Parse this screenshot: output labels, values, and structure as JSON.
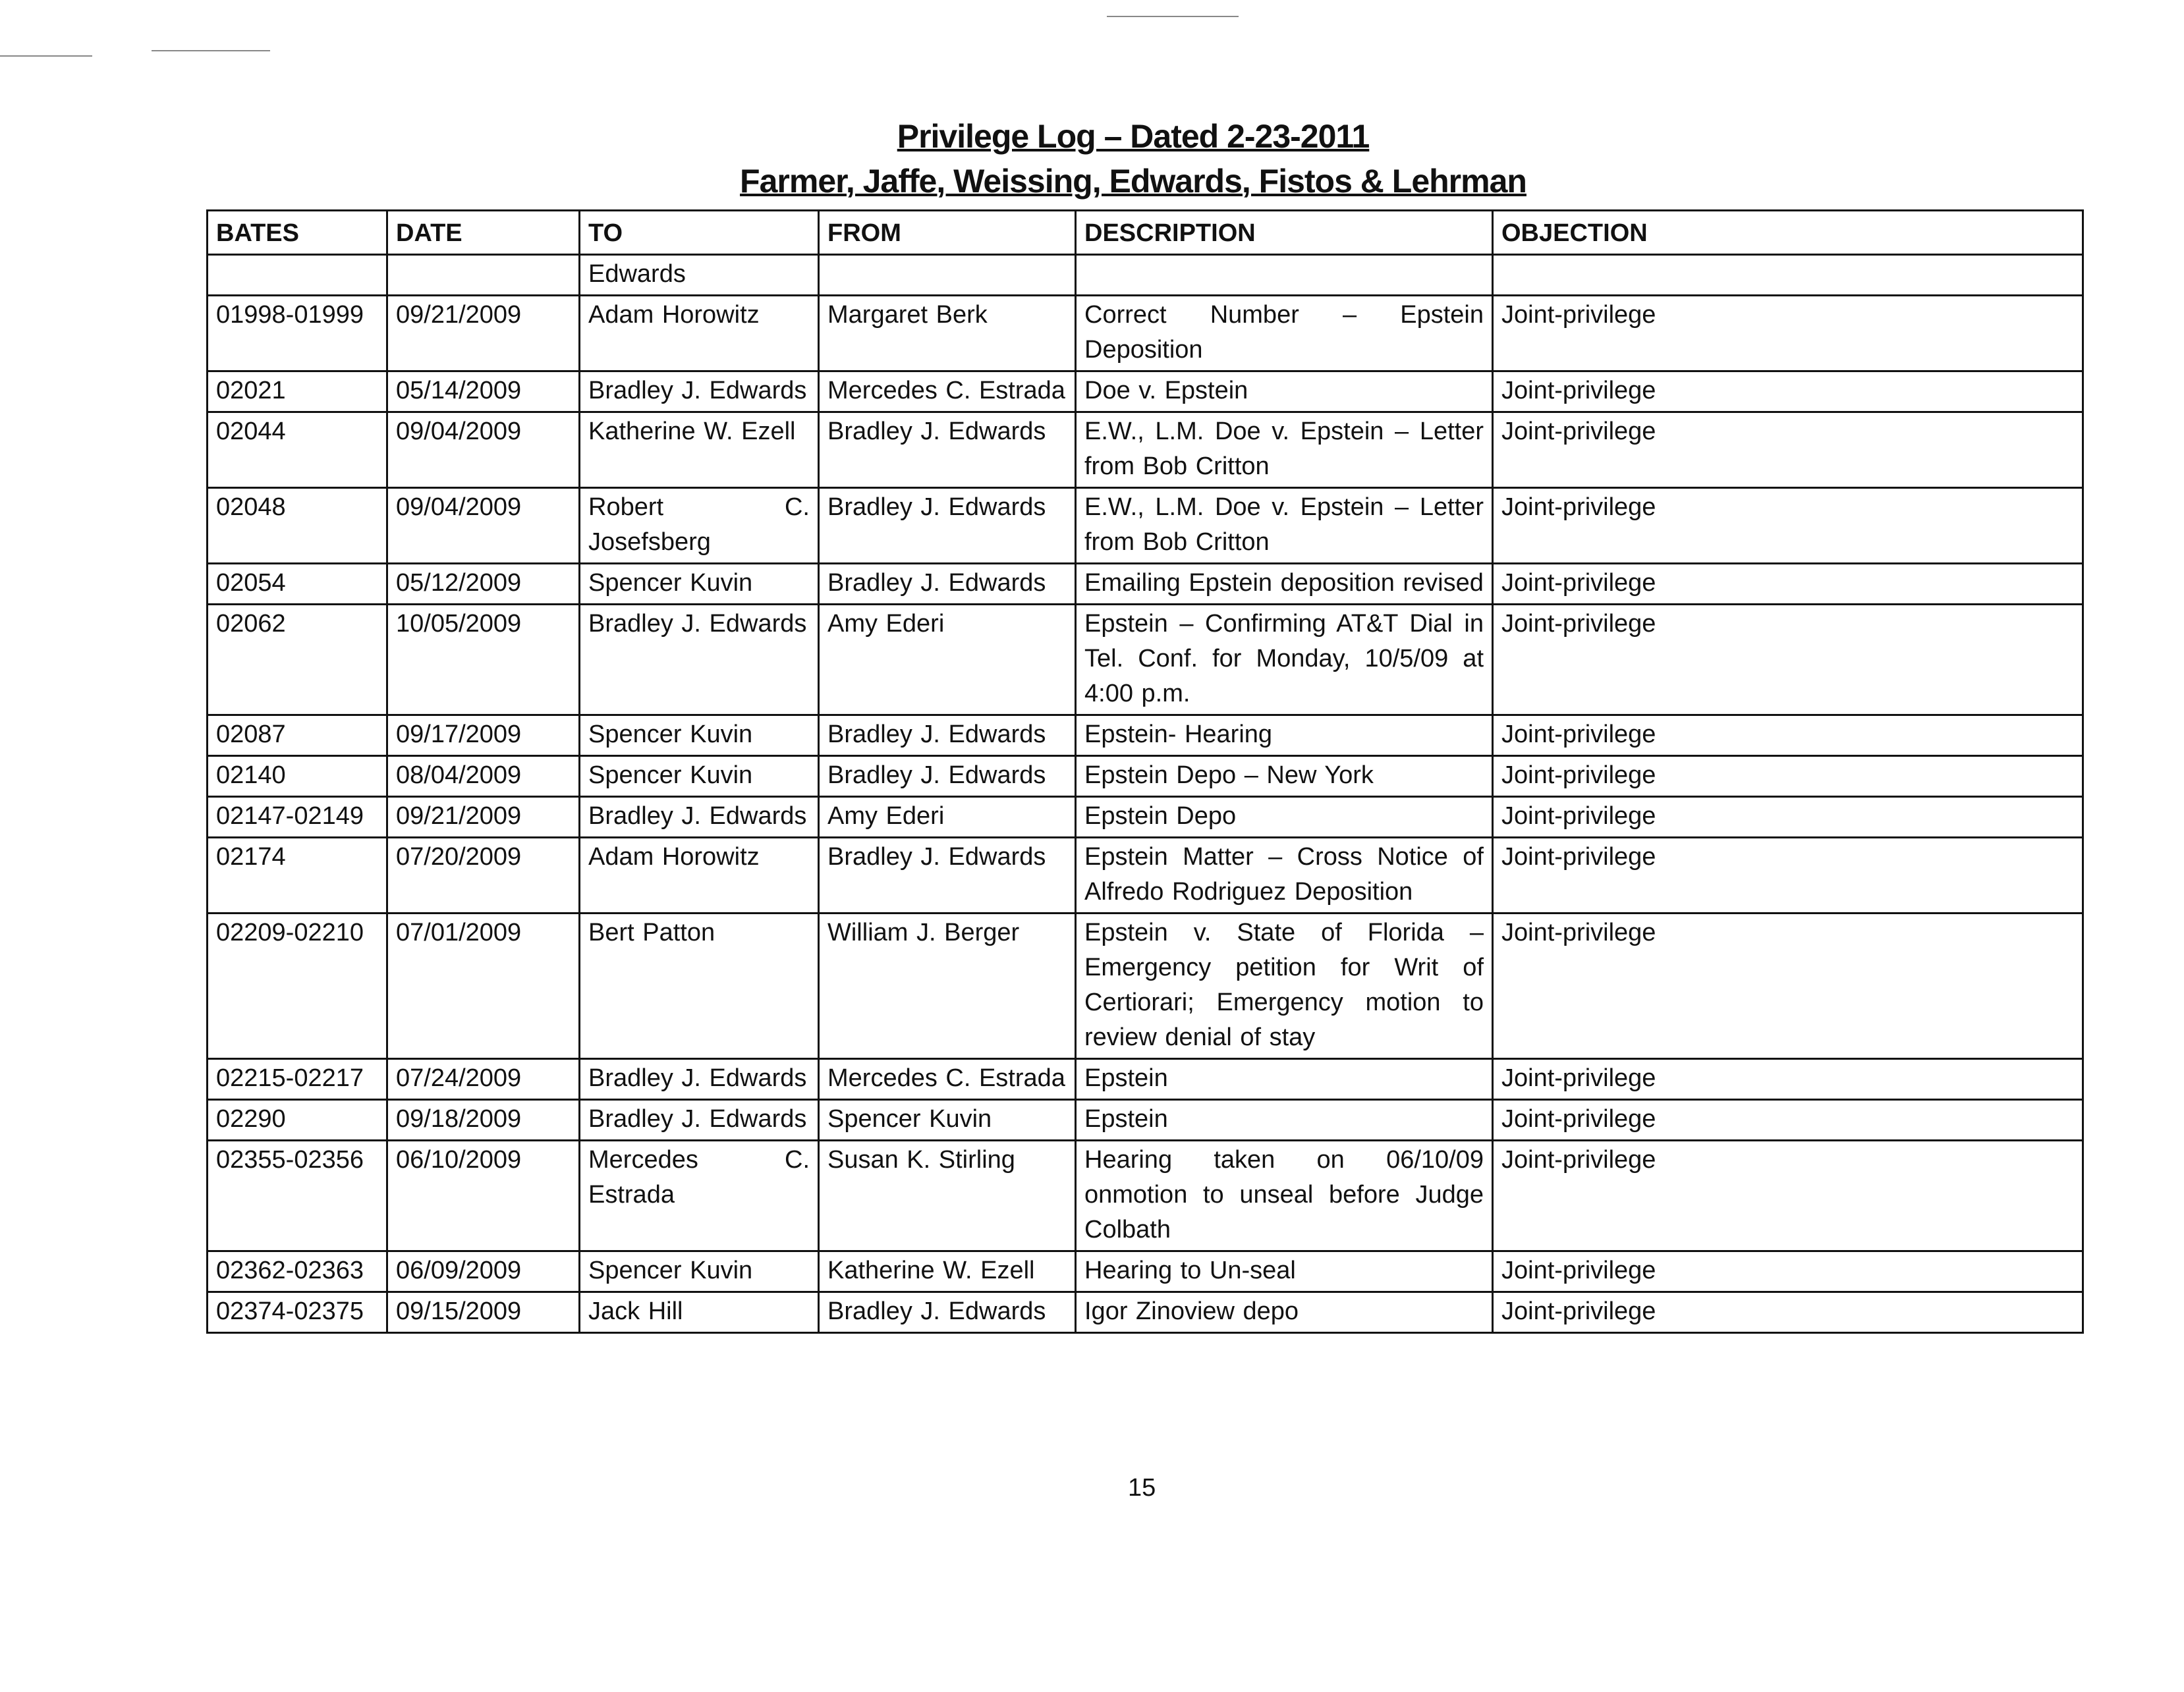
{
  "header": {
    "title": "Privilege Log – Dated 2-23-2011",
    "subtitle": "Farmer, Jaffe, Weissing, Edwards, Fistos & Lehrman"
  },
  "table": {
    "columns": [
      "BATES",
      "DATE",
      "TO",
      "FROM",
      "DESCRIPTION",
      "OBJECTION"
    ],
    "rows": [
      [
        "",
        "",
        "Edwards",
        "",
        "",
        ""
      ],
      [
        "01998-01999",
        "09/21/2009",
        "Adam Horowitz",
        "Margaret Berk",
        "Correct Number – Epstein Deposition",
        "Joint-privilege"
      ],
      [
        "02021",
        "05/14/2009",
        "Bradley J. Edwards",
        "Mercedes C. Estrada",
        "Doe v. Epstein",
        "Joint-privilege"
      ],
      [
        "02044",
        "09/04/2009",
        "Katherine W. Ezell",
        "Bradley J. Edwards",
        "E.W., L.M. Doe v. Epstein – Letter from Bob Critton",
        "Joint-privilege"
      ],
      [
        "02048",
        "09/04/2009",
        "Robert C. Josefsberg",
        "Bradley J. Edwards",
        "E.W., L.M. Doe v. Epstein – Letter from Bob Critton",
        "Joint-privilege"
      ],
      [
        "02054",
        "05/12/2009",
        "Spencer Kuvin",
        "Bradley J. Edwards",
        "Emailing Epstein deposition revised",
        "Joint-privilege"
      ],
      [
        "02062",
        "10/05/2009",
        "Bradley J. Edwards",
        "Amy Ederi",
        "Epstein – Confirming AT&T Dial in Tel. Conf. for Monday, 10/5/09 at 4:00 p.m.",
        "Joint-privilege"
      ],
      [
        "02087",
        "09/17/2009",
        "Spencer Kuvin",
        "Bradley J. Edwards",
        "Epstein- Hearing",
        "Joint-privilege"
      ],
      [
        "02140",
        "08/04/2009",
        "Spencer Kuvin",
        "Bradley J. Edwards",
        "Epstein Depo – New York",
        "Joint-privilege"
      ],
      [
        "02147-02149",
        "09/21/2009",
        "Bradley J. Edwards",
        "Amy Ederi",
        "Epstein Depo",
        "Joint-privilege"
      ],
      [
        "02174",
        "07/20/2009",
        "Adam Horowitz",
        "Bradley J. Edwards",
        "Epstein Matter – Cross Notice of Alfredo Rodriguez Deposition",
        "Joint-privilege"
      ],
      [
        "02209-02210",
        "07/01/2009",
        "Bert Patton",
        "William J. Berger",
        "Epstein v. State of Florida – Emergency petition for Writ of Certiorari; Emergency motion to review denial of stay",
        "Joint-privilege"
      ],
      [
        "02215-02217",
        "07/24/2009",
        "Bradley J. Edwards",
        "Mercedes C. Estrada",
        "Epstein",
        "Joint-privilege"
      ],
      [
        "02290",
        "09/18/2009",
        "Bradley J. Edwards",
        "Spencer Kuvin",
        "Epstein",
        "Joint-privilege"
      ],
      [
        "02355-02356",
        "06/10/2009",
        "Mercedes C. Estrada",
        "Susan K. Stirling",
        "Hearing taken on 06/10/09 onmotion to unseal before Judge Colbath",
        "Joint-privilege"
      ],
      [
        "02362-02363",
        "06/09/2009",
        "Spencer Kuvin",
        "Katherine W. Ezell",
        "Hearing to Un-seal",
        "Joint-privilege"
      ],
      [
        "02374-02375",
        "09/15/2009",
        "Jack Hill",
        "Bradley J. Edwards",
        "Igor Zinoview depo",
        "Joint-privilege"
      ]
    ]
  },
  "footer": {
    "page_number": "15"
  }
}
